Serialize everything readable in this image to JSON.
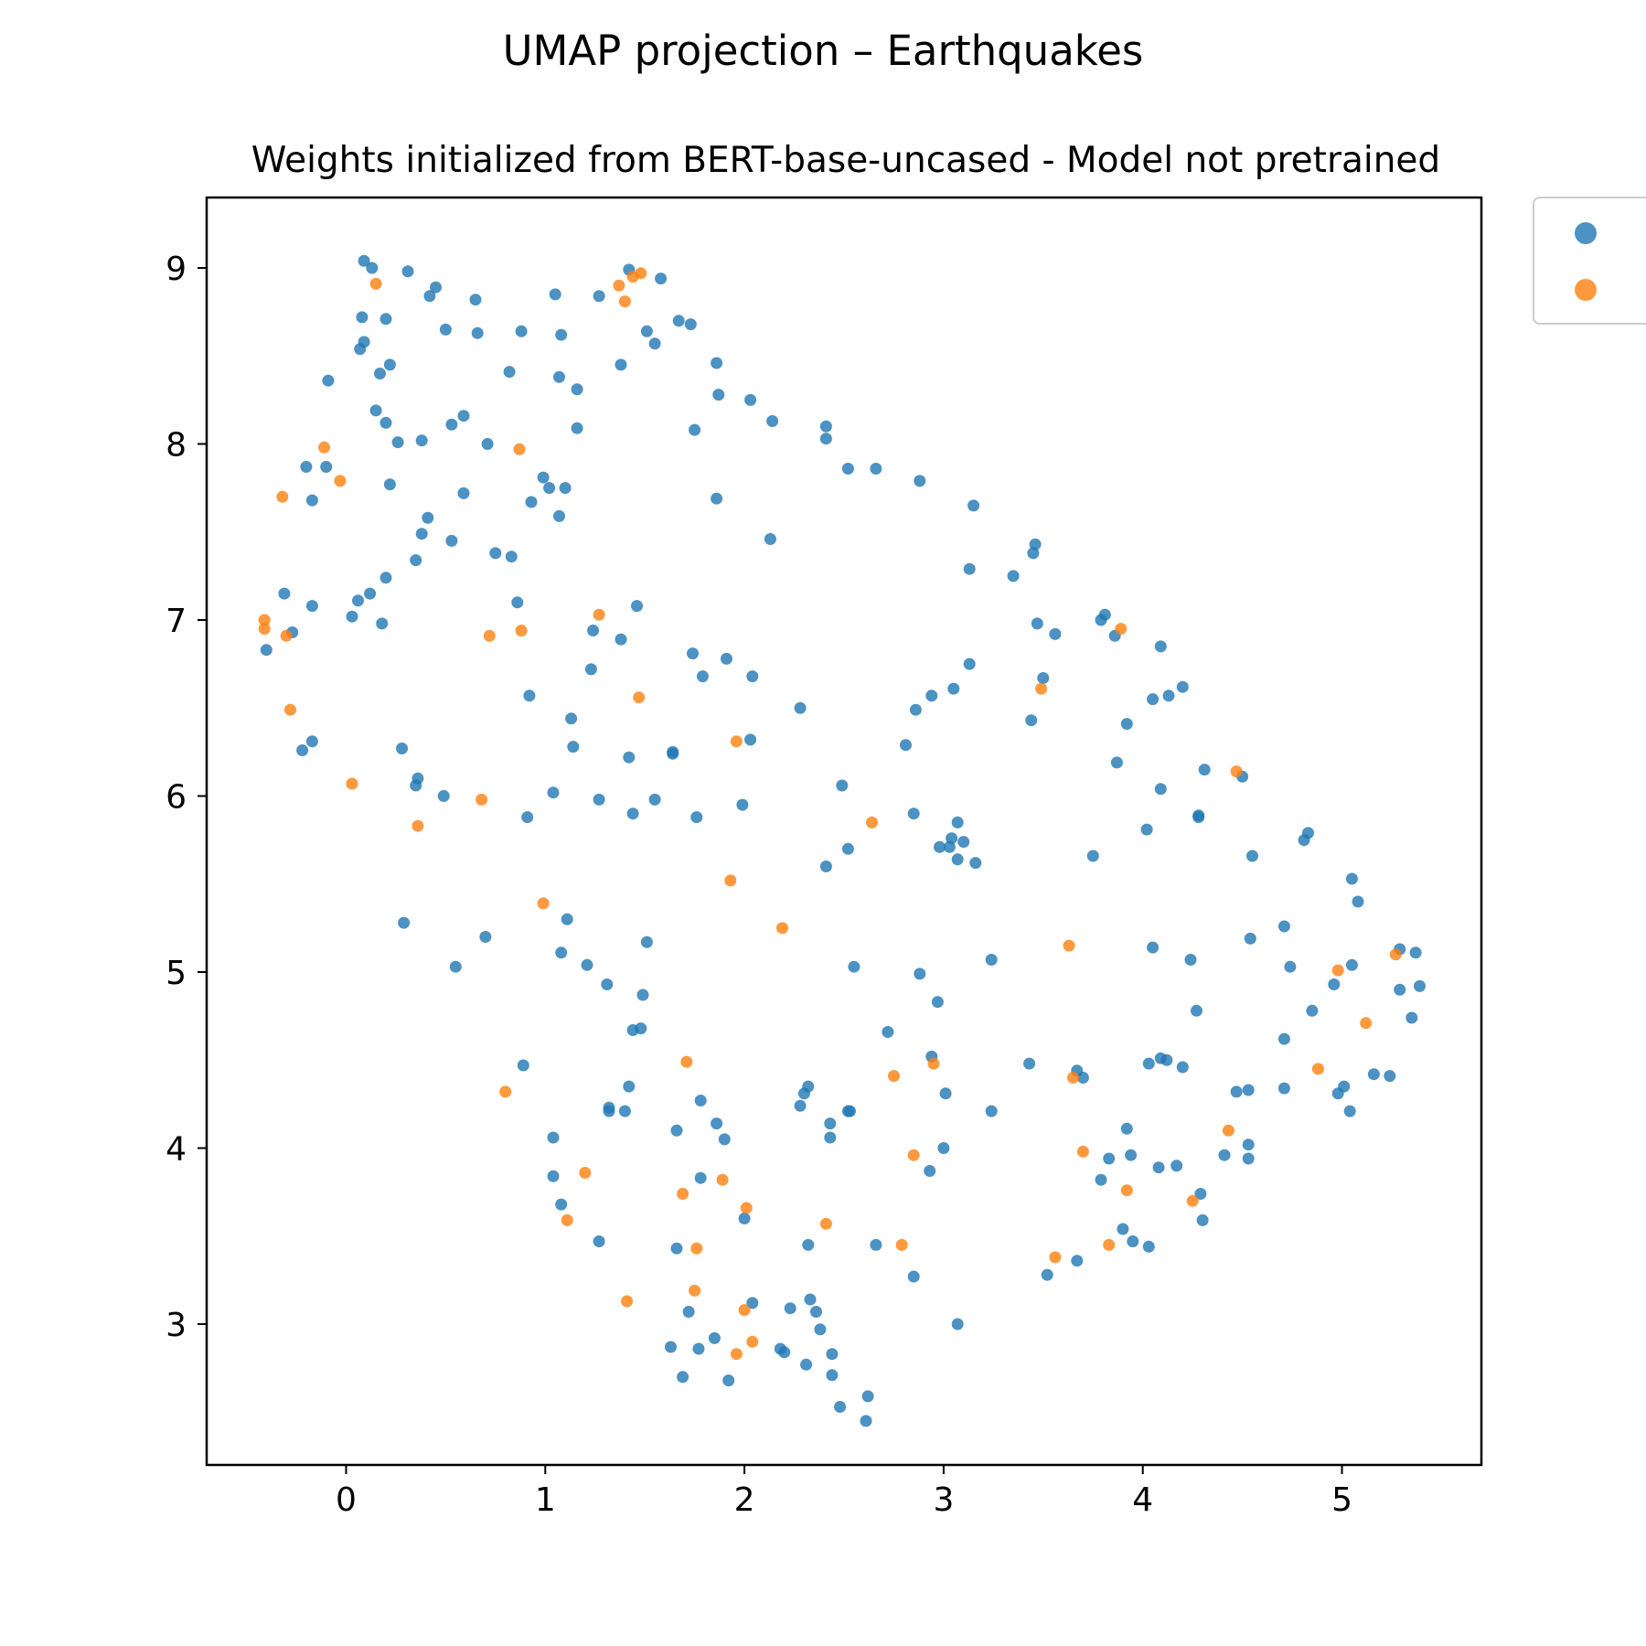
{
  "chart_data": {
    "type": "scatter",
    "title": "UMAP projection – Earthquakes",
    "subtitle": "Weights initialized from BERT-base-uncased - Model not pretrained",
    "xlabel": "",
    "ylabel": "",
    "xlim": [
      -0.7,
      5.7
    ],
    "ylim": [
      2.2,
      9.4
    ],
    "x_ticks": [
      0,
      1,
      2,
      3,
      4,
      5
    ],
    "y_ticks": [
      3,
      4,
      5,
      6,
      7,
      8,
      9
    ],
    "grid": false,
    "legend_placement": "right, outside plot",
    "series": [
      {
        "color": "#1f77b4",
        "points": [
          [
            0.09,
            9.04
          ],
          [
            0.13,
            9.0
          ],
          [
            0.31,
            8.98
          ],
          [
            0.45,
            8.89
          ],
          [
            0.42,
            8.84
          ],
          [
            0.65,
            8.82
          ],
          [
            1.05,
            8.85
          ],
          [
            1.27,
            8.84
          ],
          [
            1.42,
            8.99
          ],
          [
            1.58,
            8.94
          ],
          [
            0.08,
            8.72
          ],
          [
            0.2,
            8.71
          ],
          [
            0.5,
            8.65
          ],
          [
            0.66,
            8.63
          ],
          [
            0.88,
            8.64
          ],
          [
            1.08,
            8.62
          ],
          [
            1.51,
            8.64
          ],
          [
            1.55,
            8.57
          ],
          [
            1.67,
            8.7
          ],
          [
            1.73,
            8.68
          ],
          [
            0.09,
            8.58
          ],
          [
            0.07,
            8.54
          ],
          [
            0.22,
            8.45
          ],
          [
            0.17,
            8.4
          ],
          [
            -0.09,
            8.36
          ],
          [
            0.82,
            8.41
          ],
          [
            1.07,
            8.38
          ],
          [
            1.16,
            8.31
          ],
          [
            1.38,
            8.45
          ],
          [
            1.86,
            8.46
          ],
          [
            1.87,
            8.28
          ],
          [
            2.03,
            8.25
          ],
          [
            0.15,
            8.19
          ],
          [
            0.2,
            8.12
          ],
          [
            0.59,
            8.16
          ],
          [
            0.53,
            8.11
          ],
          [
            0.26,
            8.01
          ],
          [
            0.38,
            8.02
          ],
          [
            0.71,
            8.0
          ],
          [
            1.16,
            8.09
          ],
          [
            1.75,
            8.08
          ],
          [
            2.14,
            8.13
          ],
          [
            2.41,
            8.1
          ],
          [
            2.41,
            8.03
          ],
          [
            -0.2,
            7.87
          ],
          [
            -0.1,
            7.87
          ],
          [
            0.22,
            7.77
          ],
          [
            -0.17,
            7.68
          ],
          [
            0.59,
            7.72
          ],
          [
            0.99,
            7.81
          ],
          [
            1.02,
            7.75
          ],
          [
            1.1,
            7.75
          ],
          [
            0.93,
            7.67
          ],
          [
            1.07,
            7.59
          ],
          [
            1.86,
            7.69
          ],
          [
            2.52,
            7.86
          ],
          [
            2.66,
            7.86
          ],
          [
            2.88,
            7.79
          ],
          [
            3.15,
            7.65
          ],
          [
            0.41,
            7.58
          ],
          [
            0.38,
            7.49
          ],
          [
            0.53,
            7.45
          ],
          [
            0.75,
            7.38
          ],
          [
            0.83,
            7.36
          ],
          [
            2.13,
            7.46
          ],
          [
            0.35,
            7.34
          ],
          [
            0.2,
            7.24
          ],
          [
            0.12,
            7.15
          ],
          [
            0.06,
            7.11
          ],
          [
            -0.31,
            7.15
          ],
          [
            -0.17,
            7.08
          ],
          [
            0.03,
            7.02
          ],
          [
            0.18,
            6.98
          ],
          [
            -0.27,
            6.93
          ],
          [
            -0.4,
            6.83
          ],
          [
            0.86,
            7.1
          ],
          [
            1.46,
            7.08
          ],
          [
            1.24,
            6.94
          ],
          [
            1.38,
            6.89
          ],
          [
            1.23,
            6.72
          ],
          [
            1.74,
            6.81
          ],
          [
            1.91,
            6.78
          ],
          [
            1.79,
            6.68
          ],
          [
            2.04,
            6.68
          ],
          [
            0.92,
            6.57
          ],
          [
            1.13,
            6.44
          ],
          [
            1.14,
            6.28
          ],
          [
            1.42,
            6.22
          ],
          [
            1.64,
            6.25
          ],
          [
            1.64,
            6.24
          ],
          [
            2.03,
            6.32
          ],
          [
            2.28,
            6.5
          ],
          [
            0.28,
            6.27
          ],
          [
            -0.22,
            6.26
          ],
          [
            -0.17,
            6.31
          ],
          [
            0.35,
            6.06
          ],
          [
            0.36,
            6.1
          ],
          [
            0.49,
            6.0
          ],
          [
            1.04,
            6.02
          ],
          [
            1.27,
            5.98
          ],
          [
            0.91,
            5.88
          ],
          [
            1.44,
            5.9
          ],
          [
            1.55,
            5.98
          ],
          [
            1.76,
            5.88
          ],
          [
            1.99,
            5.95
          ],
          [
            3.13,
            7.29
          ],
          [
            3.35,
            7.25
          ],
          [
            3.46,
            7.43
          ],
          [
            3.45,
            7.38
          ],
          [
            3.47,
            6.98
          ],
          [
            3.56,
            6.92
          ],
          [
            3.79,
            7.0
          ],
          [
            3.81,
            7.03
          ],
          [
            3.86,
            6.91
          ],
          [
            4.09,
            6.85
          ],
          [
            3.13,
            6.75
          ],
          [
            3.05,
            6.61
          ],
          [
            2.94,
            6.57
          ],
          [
            2.86,
            6.49
          ],
          [
            3.5,
            6.67
          ],
          [
            4.05,
            6.55
          ],
          [
            4.13,
            6.57
          ],
          [
            4.2,
            6.62
          ],
          [
            3.92,
            6.41
          ],
          [
            3.44,
            6.43
          ],
          [
            2.81,
            6.29
          ],
          [
            3.87,
            6.19
          ],
          [
            4.31,
            6.15
          ],
          [
            4.5,
            6.11
          ],
          [
            4.09,
            6.04
          ],
          [
            2.49,
            6.06
          ],
          [
            2.85,
            5.9
          ],
          [
            3.07,
            5.85
          ],
          [
            3.04,
            5.76
          ],
          [
            3.03,
            5.71
          ],
          [
            2.98,
            5.71
          ],
          [
            3.1,
            5.74
          ],
          [
            3.07,
            5.64
          ],
          [
            3.16,
            5.62
          ],
          [
            2.52,
            5.7
          ],
          [
            2.41,
            5.6
          ],
          [
            3.75,
            5.66
          ],
          [
            4.02,
            5.81
          ],
          [
            4.28,
            5.88
          ],
          [
            4.28,
            5.89
          ],
          [
            4.83,
            5.79
          ],
          [
            4.81,
            5.75
          ],
          [
            4.55,
            5.66
          ],
          [
            5.05,
            5.53
          ],
          [
            5.08,
            5.4
          ],
          [
            4.71,
            5.26
          ],
          [
            4.54,
            5.19
          ],
          [
            5.29,
            5.13
          ],
          [
            5.37,
            5.11
          ],
          [
            4.05,
            5.14
          ],
          [
            4.24,
            5.07
          ],
          [
            3.24,
            5.07
          ],
          [
            2.55,
            5.03
          ],
          [
            2.88,
            4.99
          ],
          [
            4.74,
            5.03
          ],
          [
            5.05,
            5.04
          ],
          [
            4.96,
            4.93
          ],
          [
            5.29,
            4.9
          ],
          [
            5.39,
            4.92
          ],
          [
            2.97,
            4.83
          ],
          [
            4.27,
            4.78
          ],
          [
            4.85,
            4.78
          ],
          [
            5.35,
            4.74
          ],
          [
            4.71,
            4.62
          ],
          [
            2.72,
            4.66
          ],
          [
            2.94,
            4.52
          ],
          [
            3.43,
            4.48
          ],
          [
            3.67,
            4.44
          ],
          [
            3.7,
            4.4
          ],
          [
            4.03,
            4.48
          ],
          [
            4.09,
            4.51
          ],
          [
            4.12,
            4.5
          ],
          [
            4.2,
            4.46
          ],
          [
            3.01,
            4.31
          ],
          [
            4.47,
            4.32
          ],
          [
            4.53,
            4.33
          ],
          [
            4.71,
            4.34
          ],
          [
            4.98,
            4.31
          ],
          [
            5.01,
            4.35
          ],
          [
            5.16,
            4.42
          ],
          [
            5.24,
            4.41
          ],
          [
            5.04,
            4.21
          ],
          [
            3.24,
            4.21
          ],
          [
            2.3,
            4.31
          ],
          [
            2.32,
            4.35
          ],
          [
            2.28,
            4.24
          ],
          [
            2.52,
            4.21
          ],
          [
            2.53,
            4.21
          ],
          [
            2.43,
            4.14
          ],
          [
            2.43,
            4.06
          ],
          [
            3.92,
            4.11
          ],
          [
            0.29,
            5.28
          ],
          [
            0.55,
            5.03
          ],
          [
            0.7,
            5.2
          ],
          [
            1.11,
            5.3
          ],
          [
            1.08,
            5.11
          ],
          [
            1.21,
            5.04
          ],
          [
            1.31,
            4.93
          ],
          [
            1.51,
            5.17
          ],
          [
            1.49,
            4.87
          ],
          [
            1.44,
            4.67
          ],
          [
            1.48,
            4.68
          ],
          [
            0.89,
            4.47
          ],
          [
            1.42,
            4.35
          ],
          [
            1.32,
            4.23
          ],
          [
            1.32,
            4.21
          ],
          [
            1.4,
            4.21
          ],
          [
            1.78,
            4.27
          ],
          [
            1.86,
            4.14
          ],
          [
            1.66,
            4.1
          ],
          [
            1.9,
            4.05
          ],
          [
            1.04,
            4.06
          ],
          [
            1.04,
            3.84
          ],
          [
            1.78,
            3.83
          ],
          [
            1.08,
            3.68
          ],
          [
            1.27,
            3.47
          ],
          [
            1.66,
            3.43
          ],
          [
            2.0,
            3.6
          ],
          [
            3.0,
            4.0
          ],
          [
            3.94,
            3.96
          ],
          [
            4.41,
            3.96
          ],
          [
            4.53,
            4.02
          ],
          [
            4.53,
            3.94
          ],
          [
            4.08,
            3.89
          ],
          [
            4.17,
            3.9
          ],
          [
            3.83,
            3.94
          ],
          [
            3.79,
            3.82
          ],
          [
            2.93,
            3.87
          ],
          [
            4.29,
            3.74
          ],
          [
            4.3,
            3.59
          ],
          [
            3.9,
            3.54
          ],
          [
            3.95,
            3.47
          ],
          [
            4.03,
            3.44
          ],
          [
            3.52,
            3.28
          ],
          [
            3.67,
            3.36
          ],
          [
            2.32,
            3.45
          ],
          [
            2.66,
            3.45
          ],
          [
            2.85,
            3.27
          ],
          [
            2.04,
            3.12
          ],
          [
            2.33,
            3.14
          ],
          [
            2.36,
            3.07
          ],
          [
            2.23,
            3.09
          ],
          [
            2.38,
            2.97
          ],
          [
            1.72,
            3.07
          ],
          [
            1.85,
            2.92
          ],
          [
            1.63,
            2.87
          ],
          [
            1.77,
            2.86
          ],
          [
            2.18,
            2.86
          ],
          [
            2.2,
            2.84
          ],
          [
            2.44,
            2.83
          ],
          [
            2.31,
            2.77
          ],
          [
            1.69,
            2.7
          ],
          [
            1.92,
            2.68
          ],
          [
            2.44,
            2.71
          ],
          [
            2.62,
            2.59
          ],
          [
            2.48,
            2.53
          ],
          [
            2.61,
            2.45
          ],
          [
            3.07,
            3.0
          ]
        ]
      },
      {
        "color": "#ff7f0e",
        "points": [
          [
            0.15,
            8.91
          ],
          [
            1.37,
            8.9
          ],
          [
            1.44,
            8.95
          ],
          [
            1.48,
            8.97
          ],
          [
            1.4,
            8.81
          ],
          [
            -0.11,
            7.98
          ],
          [
            -0.03,
            7.79
          ],
          [
            -0.32,
            7.7
          ],
          [
            0.87,
            7.97
          ],
          [
            -0.41,
            7.0
          ],
          [
            -0.41,
            6.95
          ],
          [
            -0.3,
            6.91
          ],
          [
            0.72,
            6.91
          ],
          [
            0.88,
            6.94
          ],
          [
            1.27,
            7.03
          ],
          [
            -0.28,
            6.49
          ],
          [
            1.47,
            6.56
          ],
          [
            1.96,
            6.31
          ],
          [
            0.03,
            6.07
          ],
          [
            0.68,
            5.98
          ],
          [
            0.36,
            5.83
          ],
          [
            2.64,
            5.85
          ],
          [
            1.93,
            5.52
          ],
          [
            0.99,
            5.39
          ],
          [
            2.19,
            5.25
          ],
          [
            3.89,
            6.95
          ],
          [
            3.49,
            6.61
          ],
          [
            4.47,
            6.14
          ],
          [
            3.63,
            5.15
          ],
          [
            4.98,
            5.01
          ],
          [
            5.27,
            5.1
          ],
          [
            5.12,
            4.71
          ],
          [
            4.88,
            4.45
          ],
          [
            3.65,
            4.4
          ],
          [
            2.75,
            4.41
          ],
          [
            2.95,
            4.48
          ],
          [
            1.71,
            4.49
          ],
          [
            0.8,
            4.32
          ],
          [
            4.43,
            4.1
          ],
          [
            3.7,
            3.98
          ],
          [
            2.85,
            3.96
          ],
          [
            3.92,
            3.76
          ],
          [
            4.25,
            3.7
          ],
          [
            1.2,
            3.86
          ],
          [
            1.89,
            3.82
          ],
          [
            1.69,
            3.74
          ],
          [
            2.01,
            3.66
          ],
          [
            1.11,
            3.59
          ],
          [
            2.41,
            3.57
          ],
          [
            1.76,
            3.43
          ],
          [
            2.79,
            3.45
          ],
          [
            3.83,
            3.45
          ],
          [
            3.56,
            3.38
          ],
          [
            1.75,
            3.19
          ],
          [
            1.41,
            3.13
          ],
          [
            2.0,
            3.08
          ],
          [
            2.04,
            2.9
          ],
          [
            1.96,
            2.83
          ]
        ]
      }
    ]
  }
}
